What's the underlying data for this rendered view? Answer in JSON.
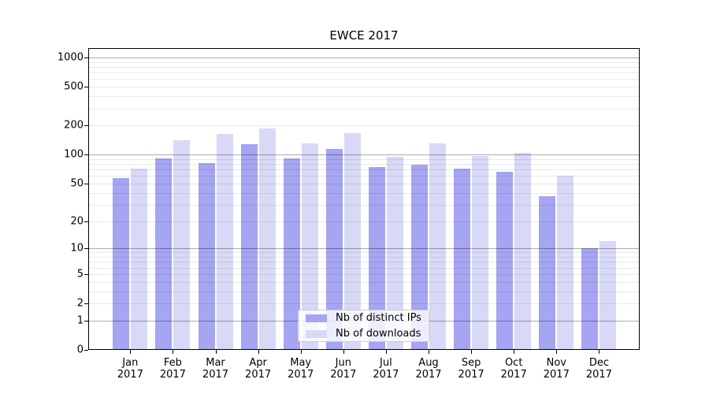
{
  "figure": {
    "title": "EWCE 2017"
  },
  "chart_data": {
    "type": "bar",
    "title": "EWCE 2017",
    "categories": [
      "Jan 2017",
      "Feb 2017",
      "Mar 2017",
      "Apr 2017",
      "May 2017",
      "Jun 2017",
      "Jul 2017",
      "Aug 2017",
      "Sep 2017",
      "Oct 2017",
      "Nov 2017",
      "Dec 2017"
    ],
    "series": [
      {
        "name": "Nb of distinct IPs",
        "color": "#a5a5f2",
        "values": [
          57,
          92,
          82,
          128,
          92,
          115,
          74,
          78,
          72,
          66,
          37,
          10
        ]
      },
      {
        "name": "Nb of downloads",
        "color": "#d8d8f7",
        "values": [
          72,
          140,
          163,
          185,
          130,
          166,
          95,
          130,
          96,
          104,
          60,
          12
        ]
      }
    ],
    "yscale": "log1p",
    "y_ticks": [
      0,
      1,
      2,
      5,
      10,
      20,
      50,
      100,
      200,
      500,
      1000
    ],
    "major_gridlines": [
      1,
      10,
      100,
      1000
    ],
    "ylim": [
      0,
      1250
    ],
    "grid": true,
    "legend_position": "lower center",
    "xlabel": "",
    "ylabel": ""
  },
  "colors": {
    "bar_distinct_ips": "#a5a5f2",
    "bar_downloads": "#d8d8f7",
    "grid_minor": "rgba(0,0,0,0.085)",
    "grid_major": "rgba(0,0,0,0.33)",
    "axis": "#000000",
    "background": "#ffffff"
  }
}
